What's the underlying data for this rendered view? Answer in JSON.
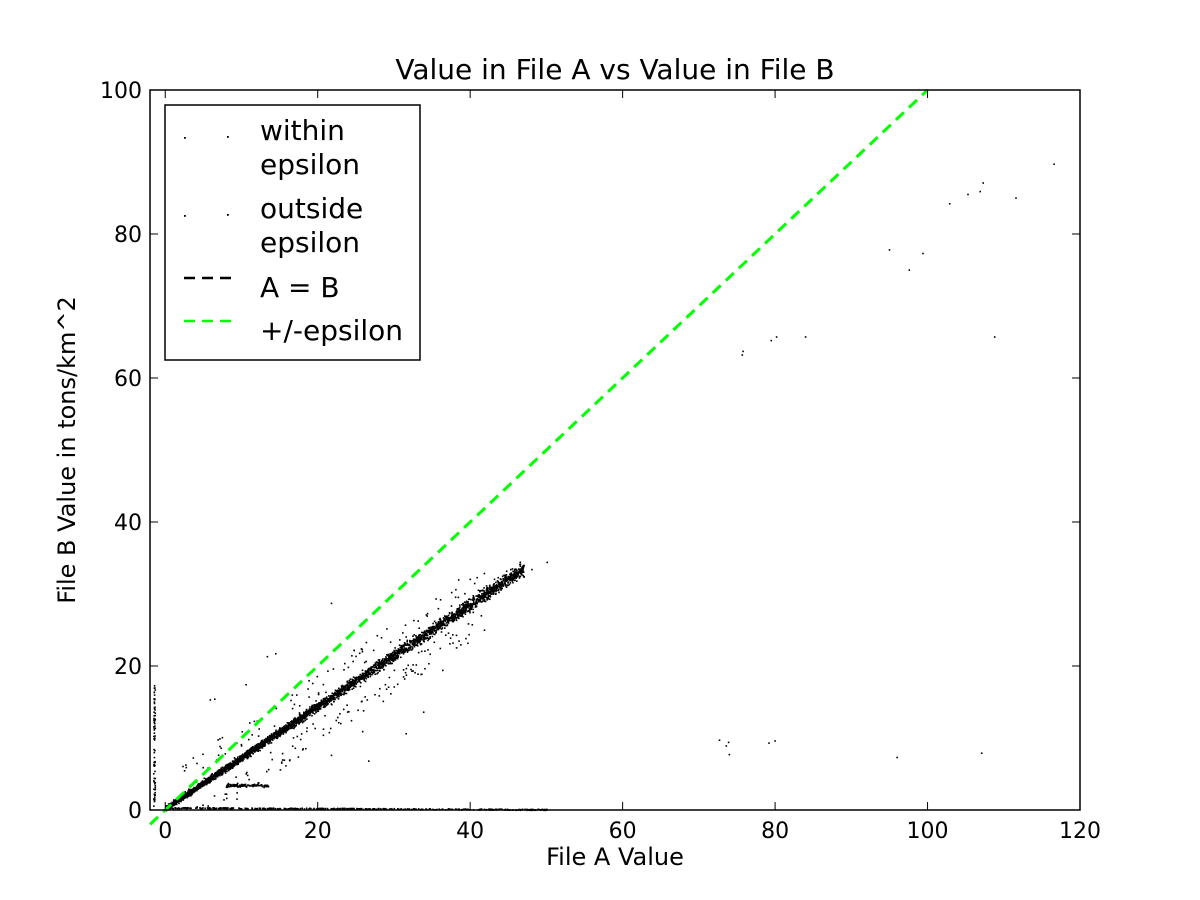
{
  "chart_data": {
    "type": "scatter",
    "title": "Value in File A vs Value in File B",
    "xlabel": "File A Value",
    "ylabel": "File B Value in tons/km^2",
    "xlim": [
      -2,
      120
    ],
    "ylim": [
      0,
      100
    ],
    "xticks": [
      0,
      20,
      40,
      60,
      80,
      100,
      120
    ],
    "yticks": [
      0,
      20,
      40,
      60,
      80,
      100
    ],
    "xtick_labels": [
      "0",
      "20",
      "40",
      "60",
      "80",
      "100",
      "120"
    ],
    "ytick_labels": [
      "0",
      "20",
      "40",
      "60",
      "80",
      "100"
    ],
    "grid": false,
    "legend_position": "top-left",
    "legend": [
      {
        "label_lines": [
          "within",
          "epsilon"
        ],
        "marker": "point"
      },
      {
        "label_lines": [
          "outside",
          "epsilon"
        ],
        "marker": "point"
      },
      {
        "label_lines": [
          "A = B"
        ],
        "marker": "dashed-line",
        "color": "#000000"
      },
      {
        "label_lines": [
          "+/-epsilon"
        ],
        "marker": "dashed-line",
        "color": "#00ff00"
      }
    ],
    "colors": {
      "points": "#000000",
      "identity_line": "#000000",
      "epsilon_line": "#00ff00",
      "axes": "#000000"
    },
    "series": [
      {
        "name": "within epsilon",
        "main_band": {
          "x_start": 0,
          "x_end": 47,
          "slope": 0.71,
          "intercept": 0.3,
          "spread": 0.9
        },
        "points": [
          [
            0.5,
            0.5
          ],
          [
            1,
            1.5
          ],
          [
            2,
            2
          ],
          [
            3,
            3
          ],
          [
            4,
            4
          ],
          [
            5,
            4.5
          ],
          [
            6,
            5
          ],
          [
            50,
            34.5
          ],
          [
            48,
            33.5
          ],
          [
            46,
            32.5
          ],
          [
            44,
            31.5
          ]
        ]
      },
      {
        "name": "outside epsilon",
        "points": [
          [
            116.5,
            89.8
          ],
          [
            107.2,
            87.2
          ],
          [
            106.8,
            86
          ],
          [
            105.2,
            85.6
          ],
          [
            111.5,
            85.1
          ],
          [
            102.8,
            84.3
          ],
          [
            94.9,
            77.9
          ],
          [
            99.3,
            77.4
          ],
          [
            97.5,
            75.1
          ],
          [
            83.9,
            65.8
          ],
          [
            80.1,
            65.8
          ],
          [
            79.4,
            65.3
          ],
          [
            75.7,
            63.8
          ],
          [
            75.6,
            63.3
          ],
          [
            108.7,
            65.8
          ],
          [
            72.6,
            9.8
          ],
          [
            73.8,
            9.5
          ],
          [
            73.5,
            9.0
          ],
          [
            73.9,
            7.8
          ],
          [
            79.1,
            9.4
          ],
          [
            79.9,
            9.7
          ],
          [
            95.9,
            7.4
          ],
          [
            107.0,
            8.0
          ],
          [
            21.7,
            28.8
          ],
          [
            6.4,
            15.5
          ],
          [
            5.8,
            15.4
          ],
          [
            13.3,
            21.4
          ],
          [
            14.4,
            21.8
          ],
          [
            33.8,
            13.7
          ],
          [
            36.3,
            19.5
          ],
          [
            26.6,
            6.9
          ],
          [
            31.5,
            10.7
          ],
          [
            21.7,
            7.7
          ],
          [
            16.5,
            12.2
          ],
          [
            18.5,
            11.5
          ],
          [
            10.5,
            17.5
          ],
          [
            28.5,
            15.2
          ],
          [
            25.8,
            11.0
          ]
        ],
        "lower_streak": {
          "x_start": 0,
          "x_end": 50,
          "y_start": 0.3,
          "y_end": 0.05
        },
        "small_cluster": {
          "x_start": 8,
          "x_end": 13.5,
          "y": 3.5
        }
      }
    ],
    "lines": [
      {
        "name": "+/-epsilon",
        "points": [
          [
            -2,
            -2
          ],
          [
            100,
            100
          ]
        ],
        "style": "dashed",
        "color": "#00ff00"
      }
    ]
  }
}
